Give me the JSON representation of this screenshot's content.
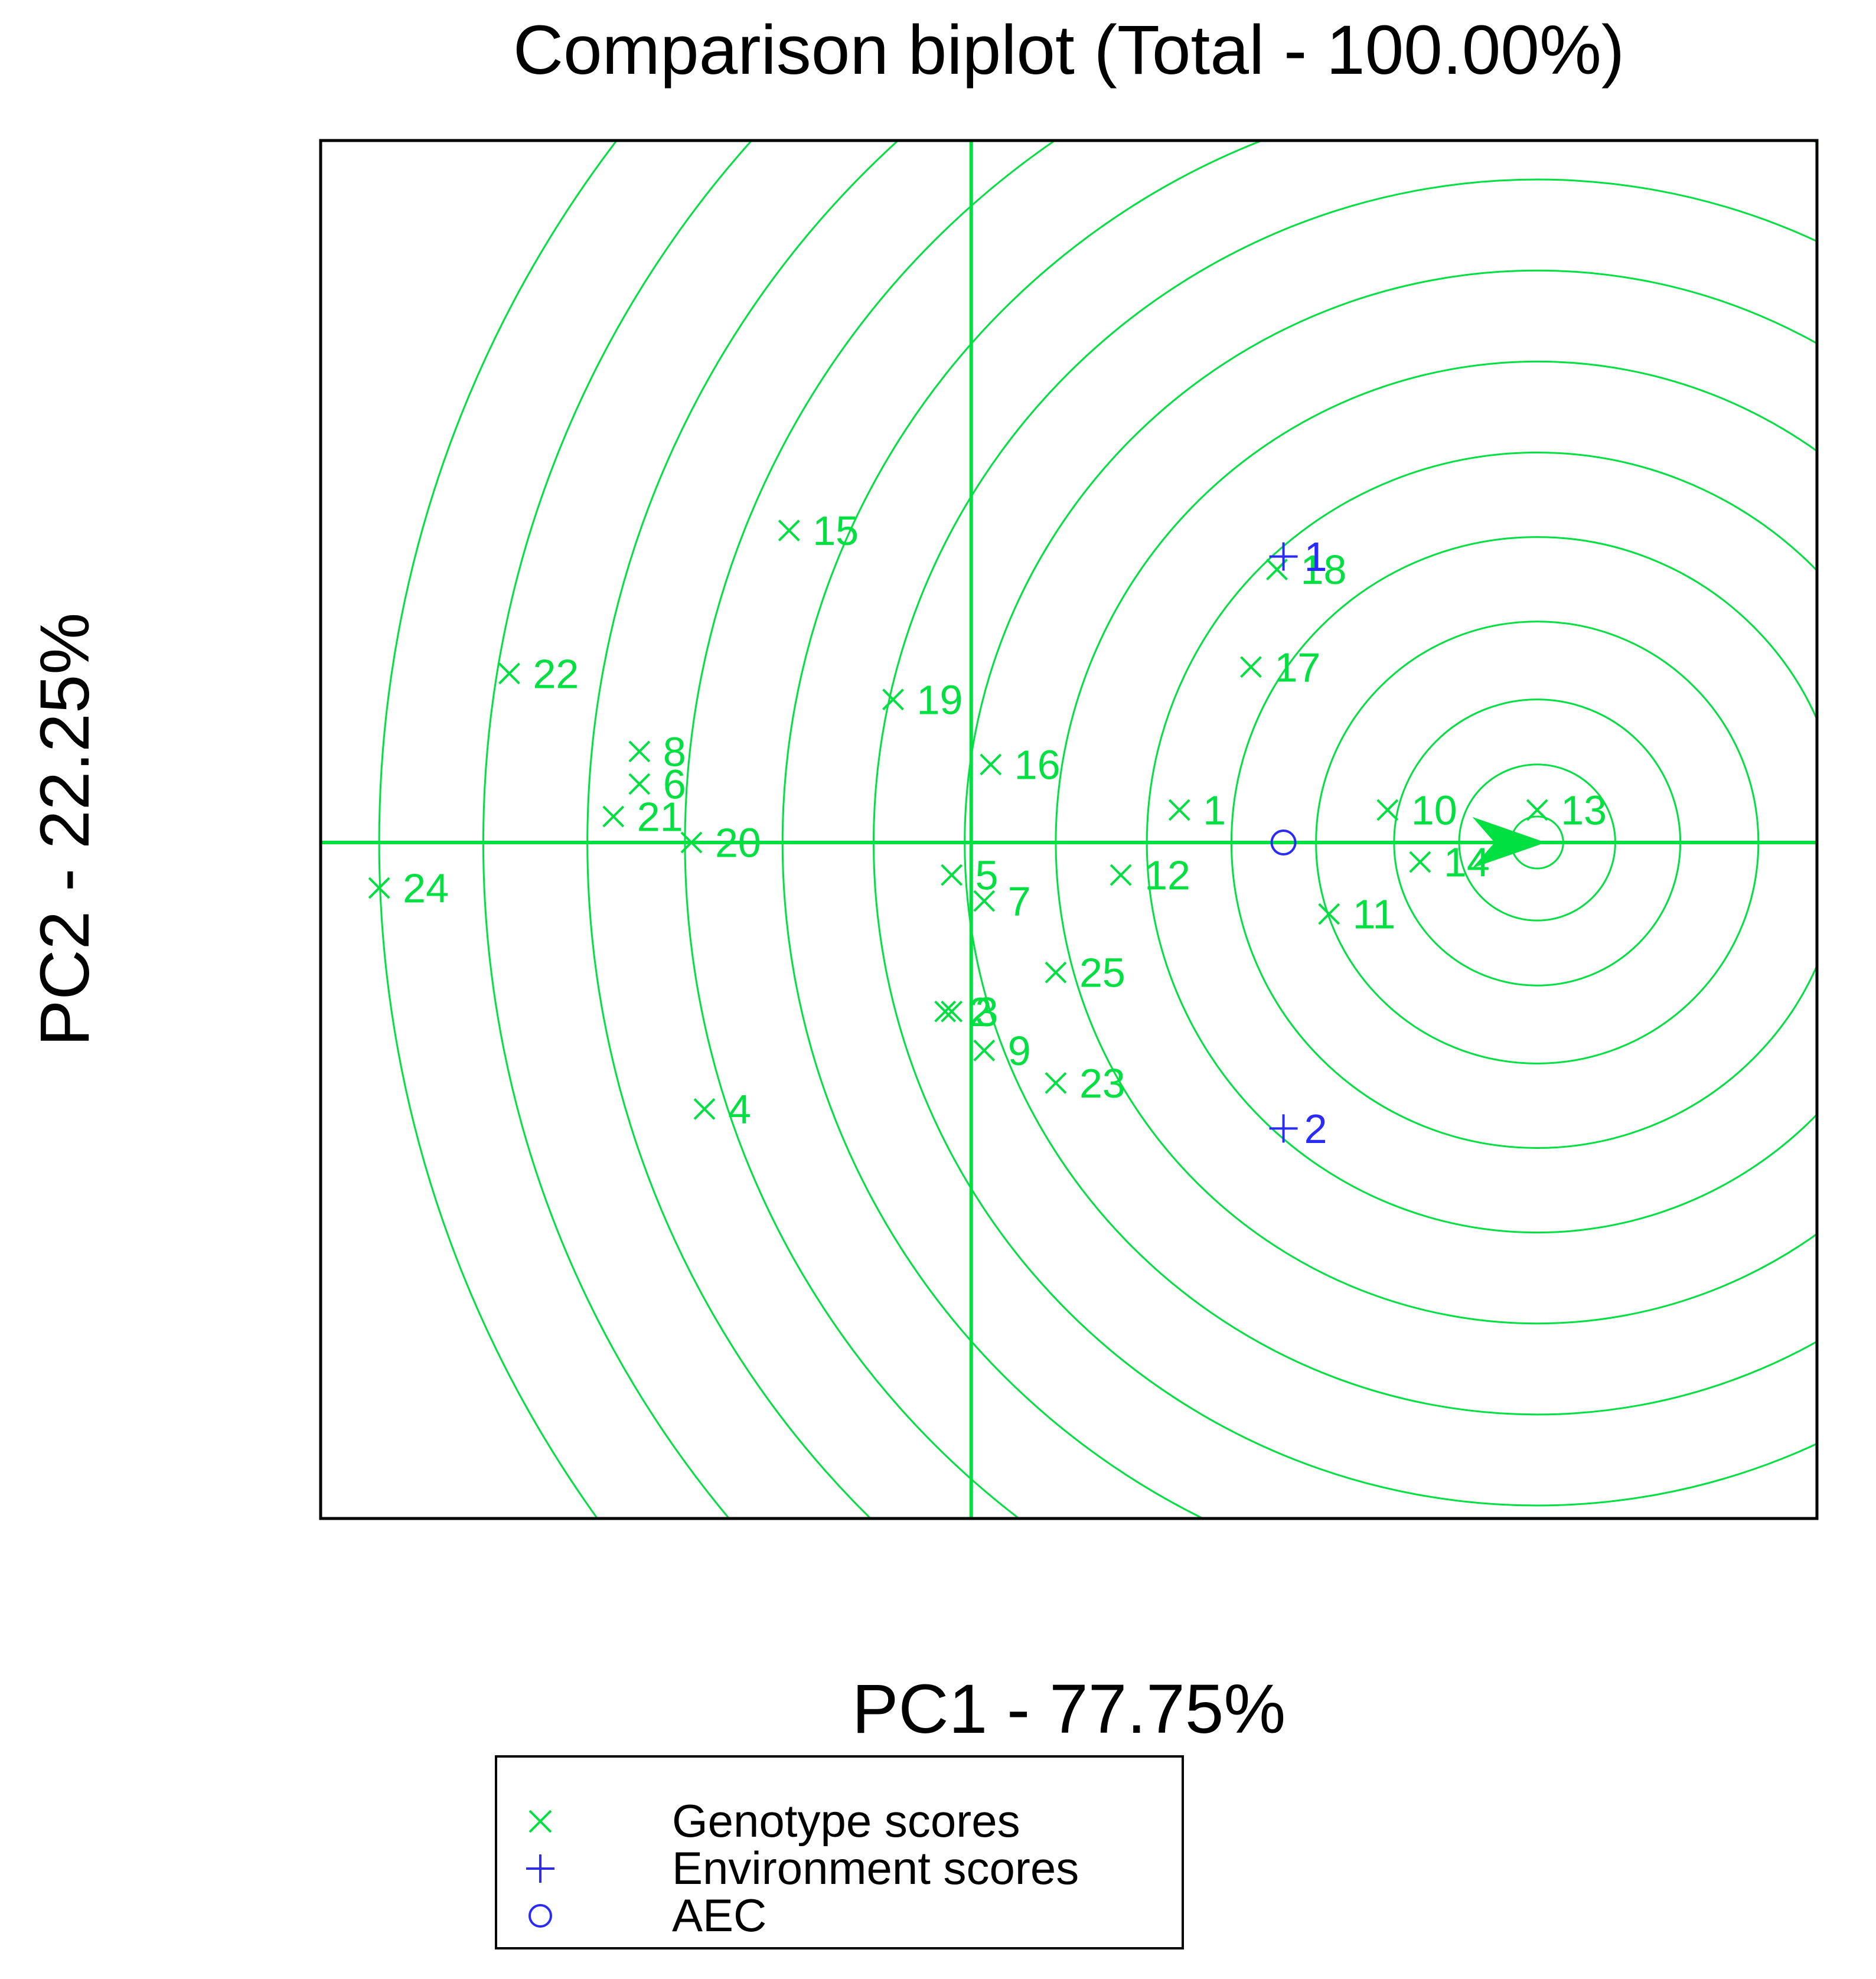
{
  "chart_data": {
    "type": "scatter",
    "title": "Comparison biplot (Total - 100.00%)",
    "xlabel": "PC1 - 77.75%",
    "ylabel": "PC2 - 22.25%",
    "xlim": [
      -1.0,
      1.3
    ],
    "ylim": [
      -1.04,
      1.08
    ],
    "grid": false,
    "legend_position": "bottom-center",
    "colors": {
      "genotype": "#00e040",
      "environment": "#2a2aff",
      "aec": "#2a2aff",
      "axes": "#00e040",
      "frame": "#000000"
    },
    "aec_point": {
      "x": 0.48,
      "y": 0.0
    },
    "ideal_point": {
      "x": 0.87,
      "y": 0.0
    },
    "circle_radii": [
      0.04,
      0.12,
      0.22,
      0.34,
      0.47,
      0.6,
      0.74,
      0.88,
      1.02,
      1.16,
      1.31,
      1.46,
      1.62,
      1.78
    ],
    "genotypes": [
      {
        "label": "1",
        "x": 0.32,
        "y": 0.05
      },
      {
        "label": "2",
        "x": -0.04,
        "y": -0.26
      },
      {
        "label": "3",
        "x": -0.03,
        "y": -0.26
      },
      {
        "label": "4",
        "x": -0.41,
        "y": -0.41
      },
      {
        "label": "5",
        "x": -0.03,
        "y": -0.05
      },
      {
        "label": "6",
        "x": -0.51,
        "y": 0.09
      },
      {
        "label": "7",
        "x": 0.02,
        "y": -0.09
      },
      {
        "label": "8",
        "x": -0.51,
        "y": 0.14
      },
      {
        "label": "9",
        "x": 0.02,
        "y": -0.32
      },
      {
        "label": "10",
        "x": 0.64,
        "y": 0.05
      },
      {
        "label": "11",
        "x": 0.55,
        "y": -0.11
      },
      {
        "label": "12",
        "x": 0.23,
        "y": -0.05
      },
      {
        "label": "13",
        "x": 0.87,
        "y": 0.05
      },
      {
        "label": "14",
        "x": 0.69,
        "y": -0.03
      },
      {
        "label": "15",
        "x": -0.28,
        "y": 0.48
      },
      {
        "label": "16",
        "x": 0.03,
        "y": 0.12
      },
      {
        "label": "17",
        "x": 0.43,
        "y": 0.27
      },
      {
        "label": "18",
        "x": 0.47,
        "y": 0.42
      },
      {
        "label": "19",
        "x": -0.12,
        "y": 0.22
      },
      {
        "label": "20",
        "x": -0.43,
        "y": 0.0
      },
      {
        "label": "21",
        "x": -0.55,
        "y": 0.04
      },
      {
        "label": "22",
        "x": -0.71,
        "y": 0.26
      },
      {
        "label": "23",
        "x": 0.13,
        "y": -0.37
      },
      {
        "label": "24",
        "x": -0.91,
        "y": -0.07
      },
      {
        "label": "25",
        "x": 0.13,
        "y": -0.2
      }
    ],
    "environments": [
      {
        "label": "1",
        "x": 0.48,
        "y": 0.44
      },
      {
        "label": "2",
        "x": 0.48,
        "y": -0.44
      }
    ]
  },
  "legend": {
    "items": [
      {
        "symbol": "×",
        "label": "Genotype scores",
        "color": "#00e040"
      },
      {
        "symbol": "+",
        "label": "Environment scores",
        "color": "#2a2aff"
      },
      {
        "symbol": "○",
        "label": "AEC",
        "color": "#2a2aff"
      }
    ]
  }
}
